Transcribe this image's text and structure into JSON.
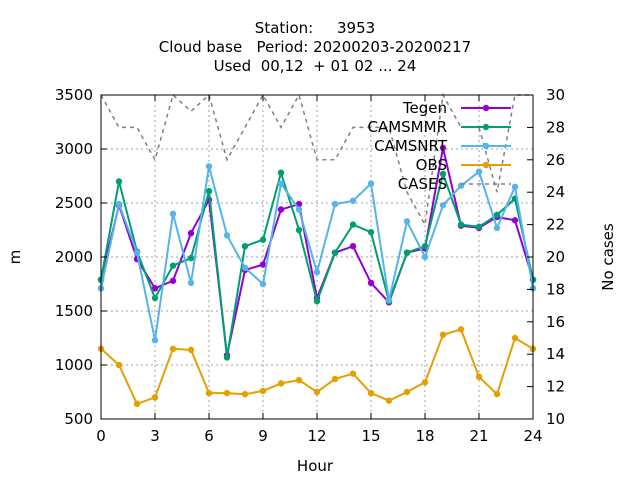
{
  "chart_data": {
    "type": "line",
    "title_lines": [
      "Station:     3953",
      "Cloud base   Period: 20200203-20200217",
      "Used  00,12  + 01 02 ... 24"
    ],
    "xlabel": "Hour",
    "ylabel": "m",
    "y2label": "No cases",
    "xlim": [
      0,
      24
    ],
    "ylim": [
      500,
      3500
    ],
    "y2lim": [
      10,
      30
    ],
    "xticks": [
      0,
      3,
      6,
      9,
      12,
      15,
      18,
      21,
      24
    ],
    "yticks": [
      500,
      1000,
      1500,
      2000,
      2500,
      3000,
      3500
    ],
    "y2ticks": [
      10,
      12,
      14,
      16,
      18,
      20,
      22,
      24,
      26,
      28,
      30
    ],
    "grid": true,
    "legend_position": "top-right",
    "x": [
      0,
      1,
      2,
      3,
      4,
      5,
      6,
      7,
      8,
      9,
      10,
      11,
      12,
      13,
      14,
      15,
      16,
      17,
      18,
      19,
      20,
      21,
      22,
      23,
      24
    ],
    "series": [
      {
        "name": "Tegen",
        "color": "#9400d3",
        "axis": "y",
        "marker": "circle",
        "values": [
          1790,
          2480,
          1980,
          1710,
          1780,
          2220,
          2530,
          1090,
          1880,
          1930,
          2440,
          2490,
          1620,
          2040,
          2100,
          1760,
          1580,
          2040,
          2080,
          3010,
          2290,
          2270,
          2370,
          2340,
          1790
        ]
      },
      {
        "name": "CAMSMMR",
        "color": "#009e73",
        "axis": "y",
        "marker": "circle",
        "values": [
          1790,
          2700,
          2050,
          1620,
          1920,
          1990,
          2610,
          1070,
          2100,
          2160,
          2780,
          2250,
          1590,
          2040,
          2300,
          2230,
          1590,
          2040,
          2100,
          2770,
          2300,
          2280,
          2390,
          2540,
          1790
        ]
      },
      {
        "name": "CAMSNRT",
        "color": "#56b4e9",
        "axis": "y",
        "marker": "circle",
        "values": [
          1710,
          2490,
          2040,
          1230,
          2400,
          1760,
          2840,
          2200,
          1900,
          1750,
          2680,
          2440,
          1860,
          2490,
          2520,
          2680,
          1600,
          2330,
          2000,
          2480,
          2660,
          2790,
          2270,
          2650,
          1710
        ]
      },
      {
        "name": "OBS",
        "color": "#e69f00",
        "axis": "y",
        "marker": "circle",
        "values": [
          1150,
          1000,
          640,
          700,
          1150,
          1140,
          740,
          740,
          730,
          760,
          830,
          860,
          750,
          870,
          920,
          740,
          670,
          750,
          840,
          1280,
          1330,
          890,
          730,
          1250,
          1150
        ]
      },
      {
        "name": "CASES",
        "color": "#808080",
        "axis": "y2",
        "marker": "none",
        "dashed": true,
        "values": [
          30,
          28,
          28,
          26,
          30,
          29,
          30,
          26,
          28,
          30,
          28,
          30,
          26,
          26,
          28,
          28,
          28,
          24,
          22,
          30,
          28,
          28,
          24,
          30,
          30
        ]
      }
    ]
  }
}
